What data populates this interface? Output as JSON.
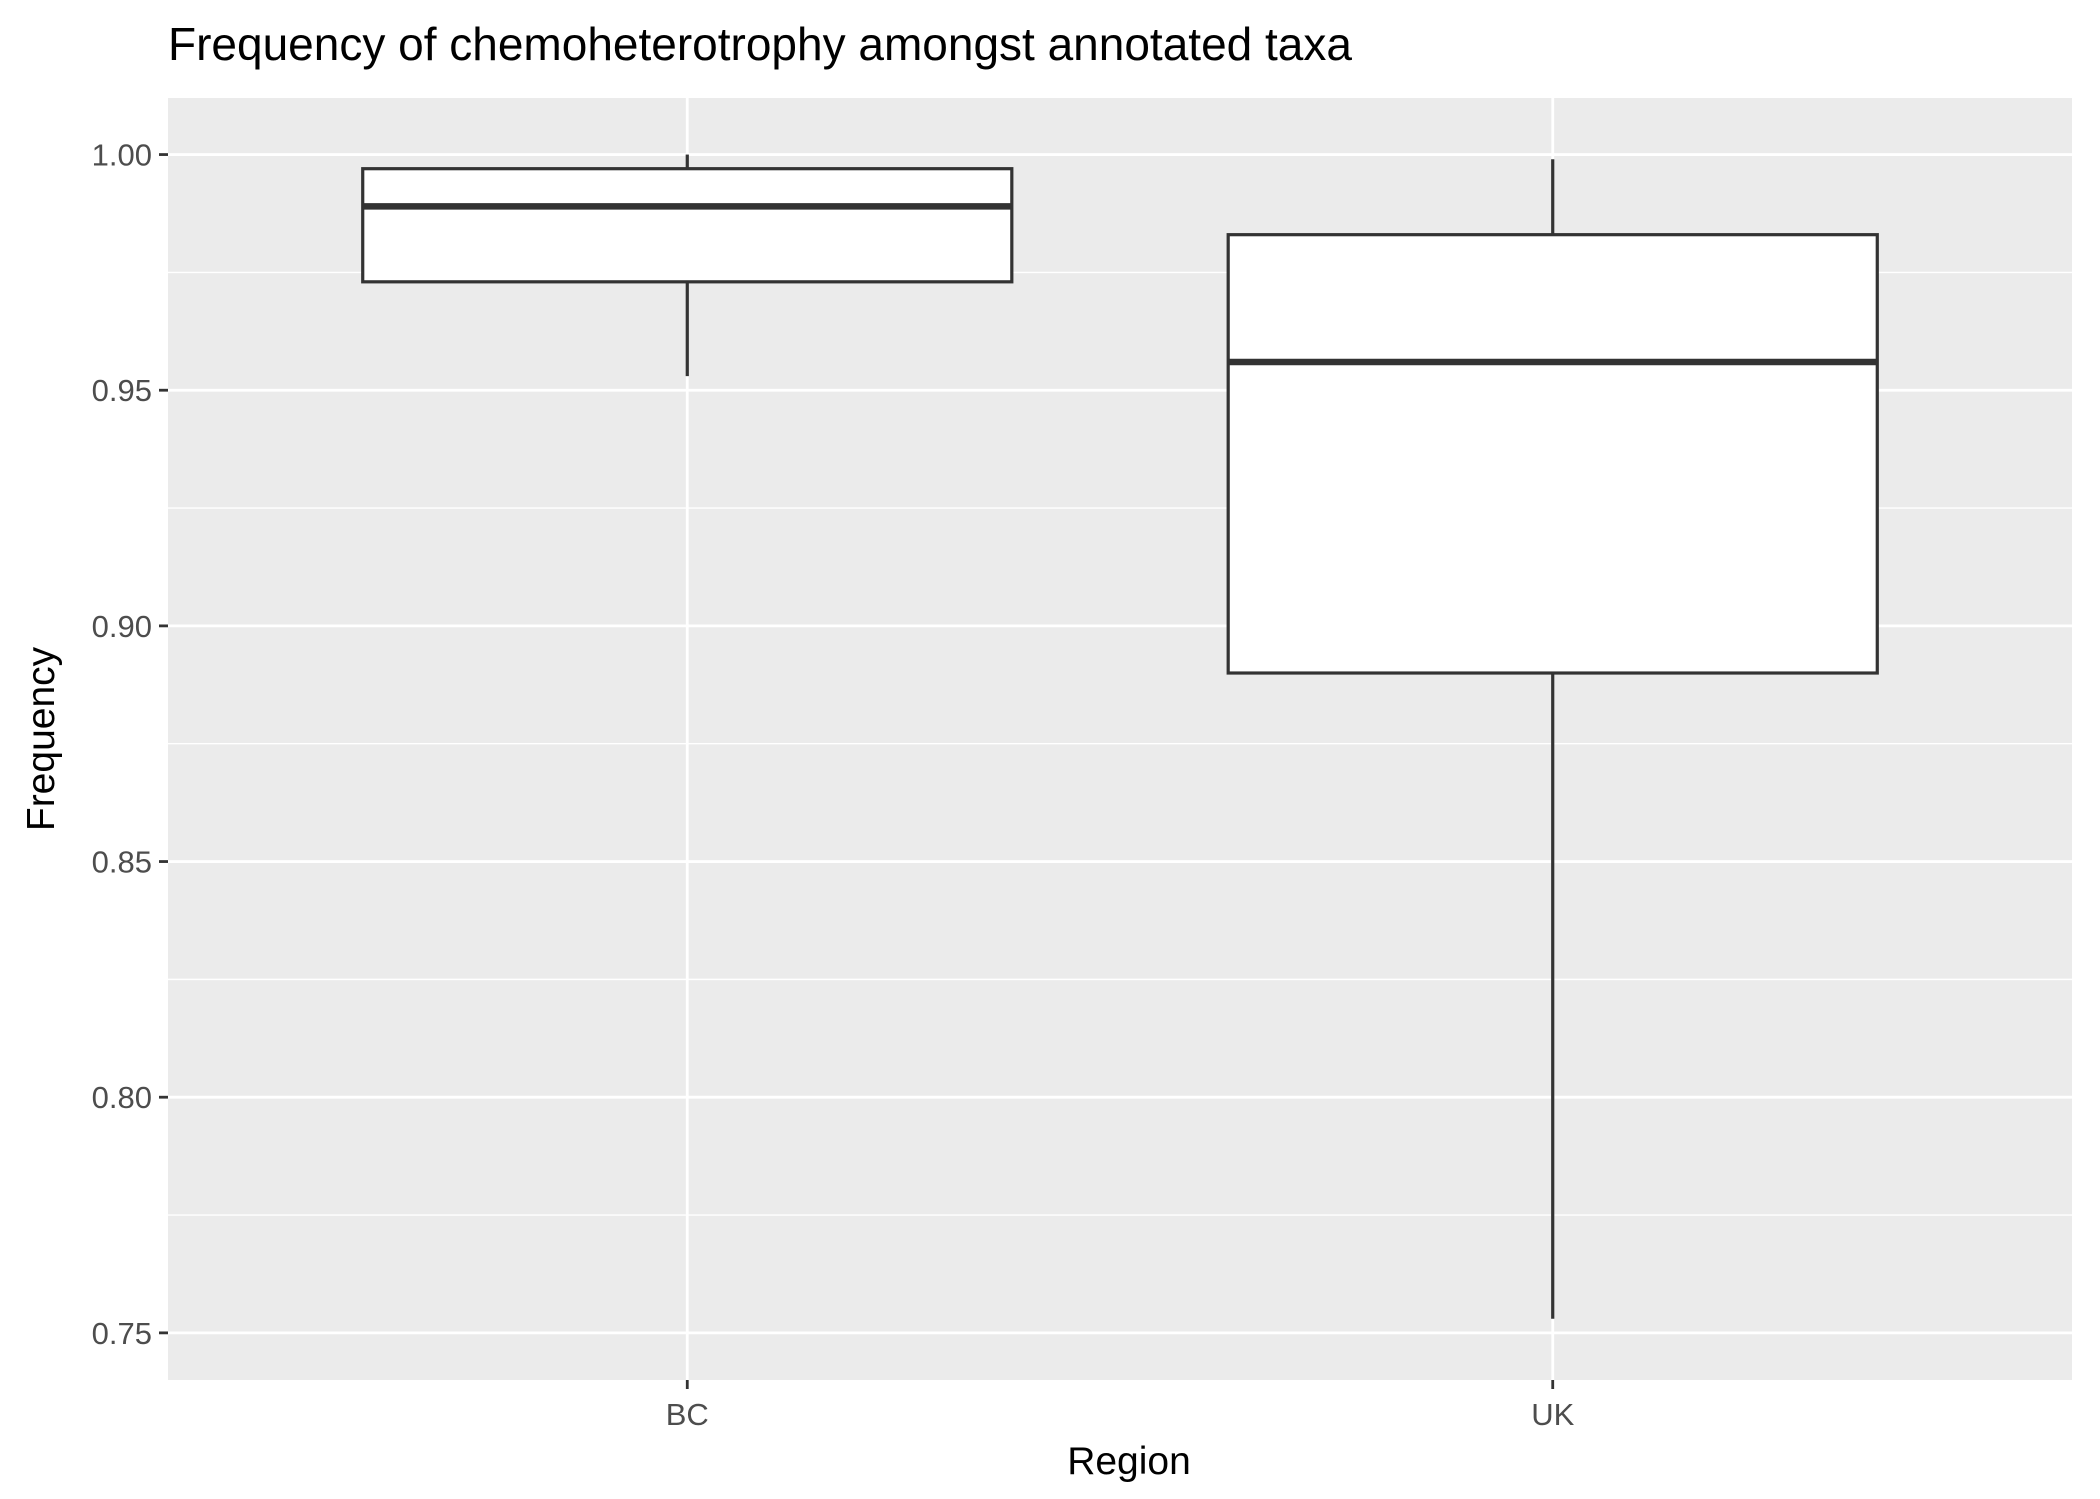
{
  "chart_data": {
    "type": "boxplot",
    "title": "Frequency of chemoheterotrophy amongst annotated taxa",
    "xlabel": "Region",
    "ylabel": "Frequency",
    "categories": [
      "BC",
      "UK"
    ],
    "boxes": [
      {
        "category": "BC",
        "whisker_low": 0.953,
        "q1": 0.973,
        "median": 0.989,
        "q3": 0.997,
        "whisker_high": 1.0
      },
      {
        "category": "UK",
        "whisker_low": 0.753,
        "q1": 0.89,
        "median": 0.956,
        "q3": 0.983,
        "whisker_high": 0.999
      }
    ],
    "ylim": [
      0.74,
      1.012
    ],
    "yticks": [
      0.75,
      0.8,
      0.85,
      0.9,
      0.95,
      1.0
    ],
    "ytick_labels": [
      "0.75",
      "0.80",
      "0.85",
      "0.90",
      "0.95",
      "1.00"
    ],
    "grid": true,
    "colors": {
      "panel": "#ebebeb",
      "grid": "#ffffff",
      "box_fill": "#ffffff",
      "box_line": "#333333"
    }
  }
}
